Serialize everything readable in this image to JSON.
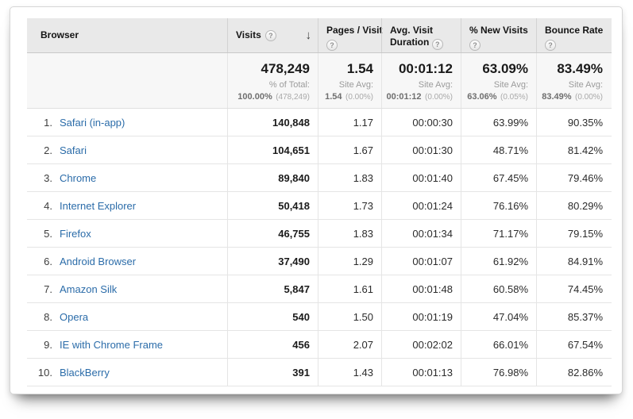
{
  "icons": {
    "help": "?",
    "sort_desc": "↓"
  },
  "colors": {
    "link": "#2b6ca9",
    "header_bg": "#e9e9e9",
    "summary_bg": "#f7f7f7"
  },
  "table": {
    "columns": [
      {
        "label": "Browser",
        "has_help": false,
        "sorted": false
      },
      {
        "label": "Visits",
        "has_help": true,
        "sorted": true
      },
      {
        "label": "Pages / Visit",
        "has_help": true,
        "sorted": false
      },
      {
        "label": "Avg. Visit Duration",
        "has_help": true,
        "sorted": false
      },
      {
        "label": "% New Visits",
        "has_help": true,
        "sorted": false
      },
      {
        "label": "Bounce Rate",
        "has_help": true,
        "sorted": false
      }
    ],
    "summary": {
      "visits": {
        "value": "478,249",
        "label": "% of Total:",
        "detail": "100.00%",
        "detail_paren": "(478,249)"
      },
      "pages_per_visit": {
        "value": "1.54",
        "label": "Site Avg:",
        "detail": "1.54",
        "detail_paren": "(0.00%)"
      },
      "avg_visit_duration": {
        "value": "00:01:12",
        "label": "Site Avg:",
        "detail": "00:01:12",
        "detail_paren": "(0.00%)"
      },
      "pct_new_visits": {
        "value": "63.09%",
        "label": "Site Avg:",
        "detail": "63.06%",
        "detail_paren": "(0.05%)"
      },
      "bounce_rate": {
        "value": "83.49%",
        "label": "Site Avg:",
        "detail": "83.49%",
        "detail_paren": "(0.00%)"
      }
    },
    "rows": [
      {
        "rank": "1.",
        "browser": "Safari (in-app)",
        "visits": "140,848",
        "pages_per_visit": "1.17",
        "avg_visit_duration": "00:00:30",
        "pct_new_visits": "63.99%",
        "bounce_rate": "90.35%"
      },
      {
        "rank": "2.",
        "browser": "Safari",
        "visits": "104,651",
        "pages_per_visit": "1.67",
        "avg_visit_duration": "00:01:30",
        "pct_new_visits": "48.71%",
        "bounce_rate": "81.42%"
      },
      {
        "rank": "3.",
        "browser": "Chrome",
        "visits": "89,840",
        "pages_per_visit": "1.83",
        "avg_visit_duration": "00:01:40",
        "pct_new_visits": "67.45%",
        "bounce_rate": "79.46%"
      },
      {
        "rank": "4.",
        "browser": "Internet Explorer",
        "visits": "50,418",
        "pages_per_visit": "1.73",
        "avg_visit_duration": "00:01:24",
        "pct_new_visits": "76.16%",
        "bounce_rate": "80.29%"
      },
      {
        "rank": "5.",
        "browser": "Firefox",
        "visits": "46,755",
        "pages_per_visit": "1.83",
        "avg_visit_duration": "00:01:34",
        "pct_new_visits": "71.17%",
        "bounce_rate": "79.15%"
      },
      {
        "rank": "6.",
        "browser": "Android Browser",
        "visits": "37,490",
        "pages_per_visit": "1.29",
        "avg_visit_duration": "00:01:07",
        "pct_new_visits": "61.92%",
        "bounce_rate": "84.91%"
      },
      {
        "rank": "7.",
        "browser": "Amazon Silk",
        "visits": "5,847",
        "pages_per_visit": "1.61",
        "avg_visit_duration": "00:01:48",
        "pct_new_visits": "60.58%",
        "bounce_rate": "74.45%"
      },
      {
        "rank": "8.",
        "browser": "Opera",
        "visits": "540",
        "pages_per_visit": "1.50",
        "avg_visit_duration": "00:01:19",
        "pct_new_visits": "47.04%",
        "bounce_rate": "85.37%"
      },
      {
        "rank": "9.",
        "browser": "IE with Chrome Frame",
        "visits": "456",
        "pages_per_visit": "2.07",
        "avg_visit_duration": "00:02:02",
        "pct_new_visits": "66.01%",
        "bounce_rate": "67.54%"
      },
      {
        "rank": "10.",
        "browser": "BlackBerry",
        "visits": "391",
        "pages_per_visit": "1.43",
        "avg_visit_duration": "00:01:13",
        "pct_new_visits": "76.98%",
        "bounce_rate": "82.86%"
      }
    ]
  }
}
